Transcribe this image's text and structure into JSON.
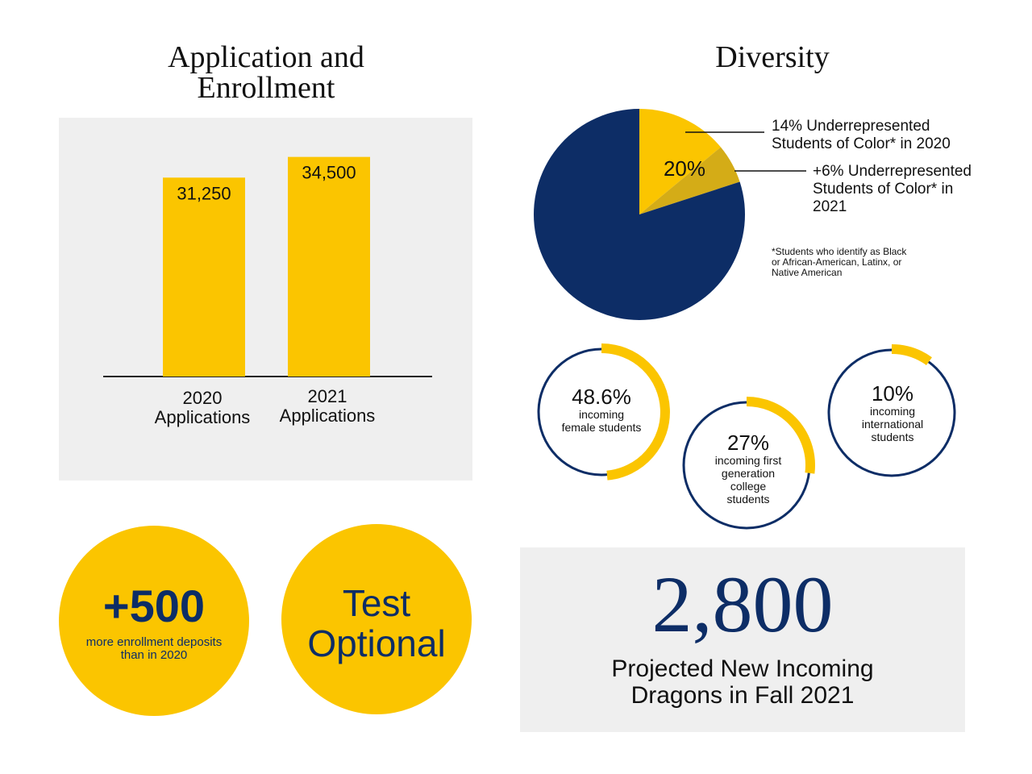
{
  "colors": {
    "gold": "#fbc500",
    "navy": "#0d2d66",
    "dark_gold": "#d4ac17",
    "panel_gray": "#efefef"
  },
  "application_section": {
    "title_line1": "Application and",
    "title_line2": "Enrollment"
  },
  "diversity_section": {
    "title": "Diversity"
  },
  "chart_data": [
    {
      "type": "bar",
      "categories": [
        "2020 Applications",
        "2021 Applications"
      ],
      "category_lines": [
        [
          "2020",
          "Applications"
        ],
        [
          "2021",
          "Applications"
        ]
      ],
      "values": [
        31250,
        34500
      ],
      "value_labels": [
        "31,250",
        "34,500"
      ],
      "ylim": [
        0,
        38000
      ],
      "grid": false
    },
    {
      "type": "pie",
      "slices": [
        {
          "value": 14,
          "color": "#fbc500"
        },
        {
          "value": 6,
          "color": "#d4ac17"
        },
        {
          "value": 80,
          "color": "#0d2d66"
        }
      ],
      "center_label": "20%",
      "annotations": [
        {
          "lines": [
            "14% Underrepresented",
            "Students of Color* in 2020"
          ]
        },
        {
          "lines": [
            "+6% Underrepresented",
            "Students of Color* in",
            "2021"
          ]
        }
      ],
      "footnote": [
        "*Students who identify as Black",
        "or African-American, Latinx, or",
        "Native American"
      ]
    },
    {
      "type": "donut",
      "items": [
        {
          "value": 48.6,
          "label": "48.6%",
          "caption_lines": [
            "incoming",
            "female students"
          ]
        },
        {
          "value": 27,
          "label": "27%",
          "caption_lines": [
            "incoming first",
            "generation",
            "college",
            "students"
          ]
        },
        {
          "value": 10,
          "label": "10%",
          "caption_lines": [
            "incoming",
            "international",
            "students"
          ]
        }
      ]
    }
  ],
  "deposits": {
    "value": "+500",
    "caption_line1": "more enrollment deposits",
    "caption_line2": "than in 2020"
  },
  "test_optional": {
    "line1": "Test",
    "line2": "Optional"
  },
  "dragons": {
    "value": "2,800",
    "caption_line1": "Projected New Incoming",
    "caption_line2": "Dragons in Fall 2021"
  }
}
